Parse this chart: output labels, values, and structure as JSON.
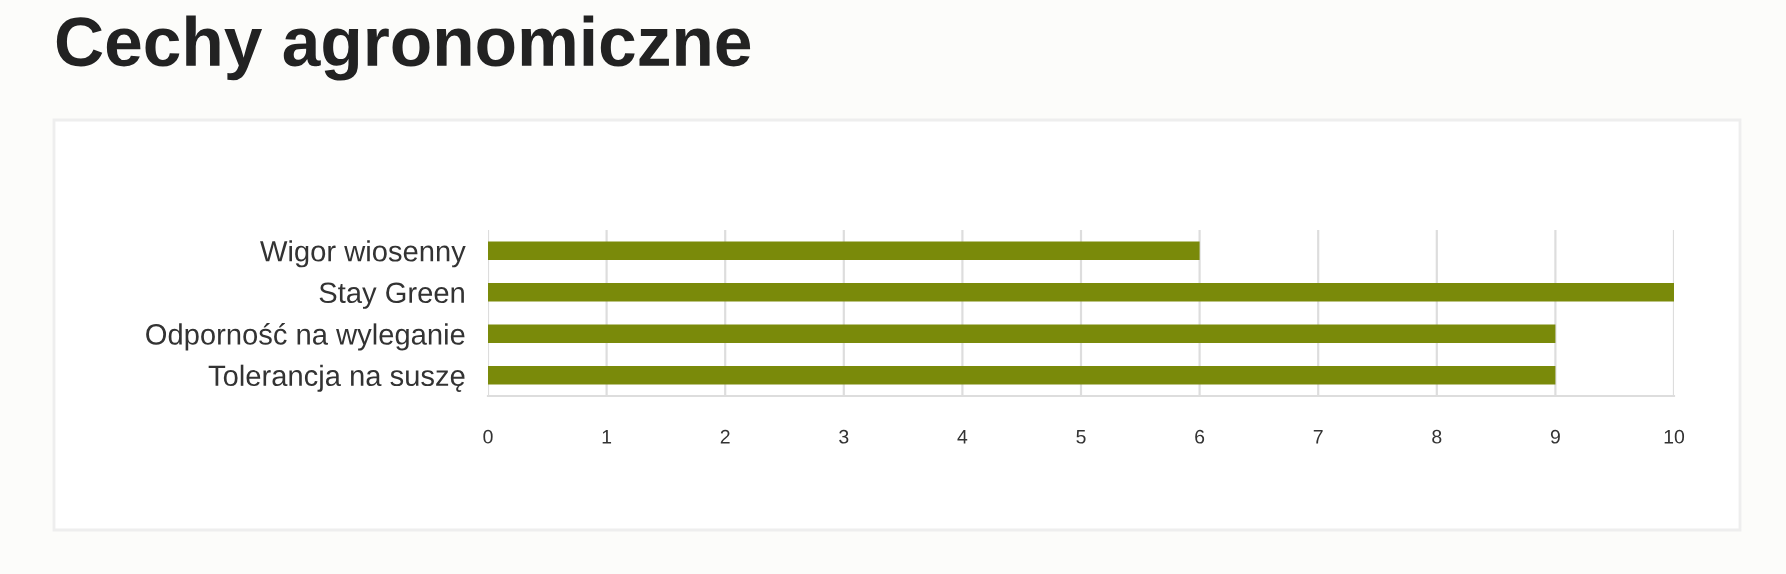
{
  "chart_data": {
    "type": "bar",
    "title": "Cechy agronomiczne",
    "orientation": "horizontal",
    "categories": [
      "Wigor wiosenny",
      "Stay Green",
      "Odporność na wyleganie",
      "Tolerancja na suszę"
    ],
    "values": [
      6,
      10,
      9,
      9
    ],
    "color": "#7a8a0a",
    "xlim": [
      0,
      10
    ],
    "xticks": [
      0,
      1,
      2,
      3,
      4,
      5,
      6,
      7,
      8,
      9,
      10
    ],
    "grid": "x"
  }
}
